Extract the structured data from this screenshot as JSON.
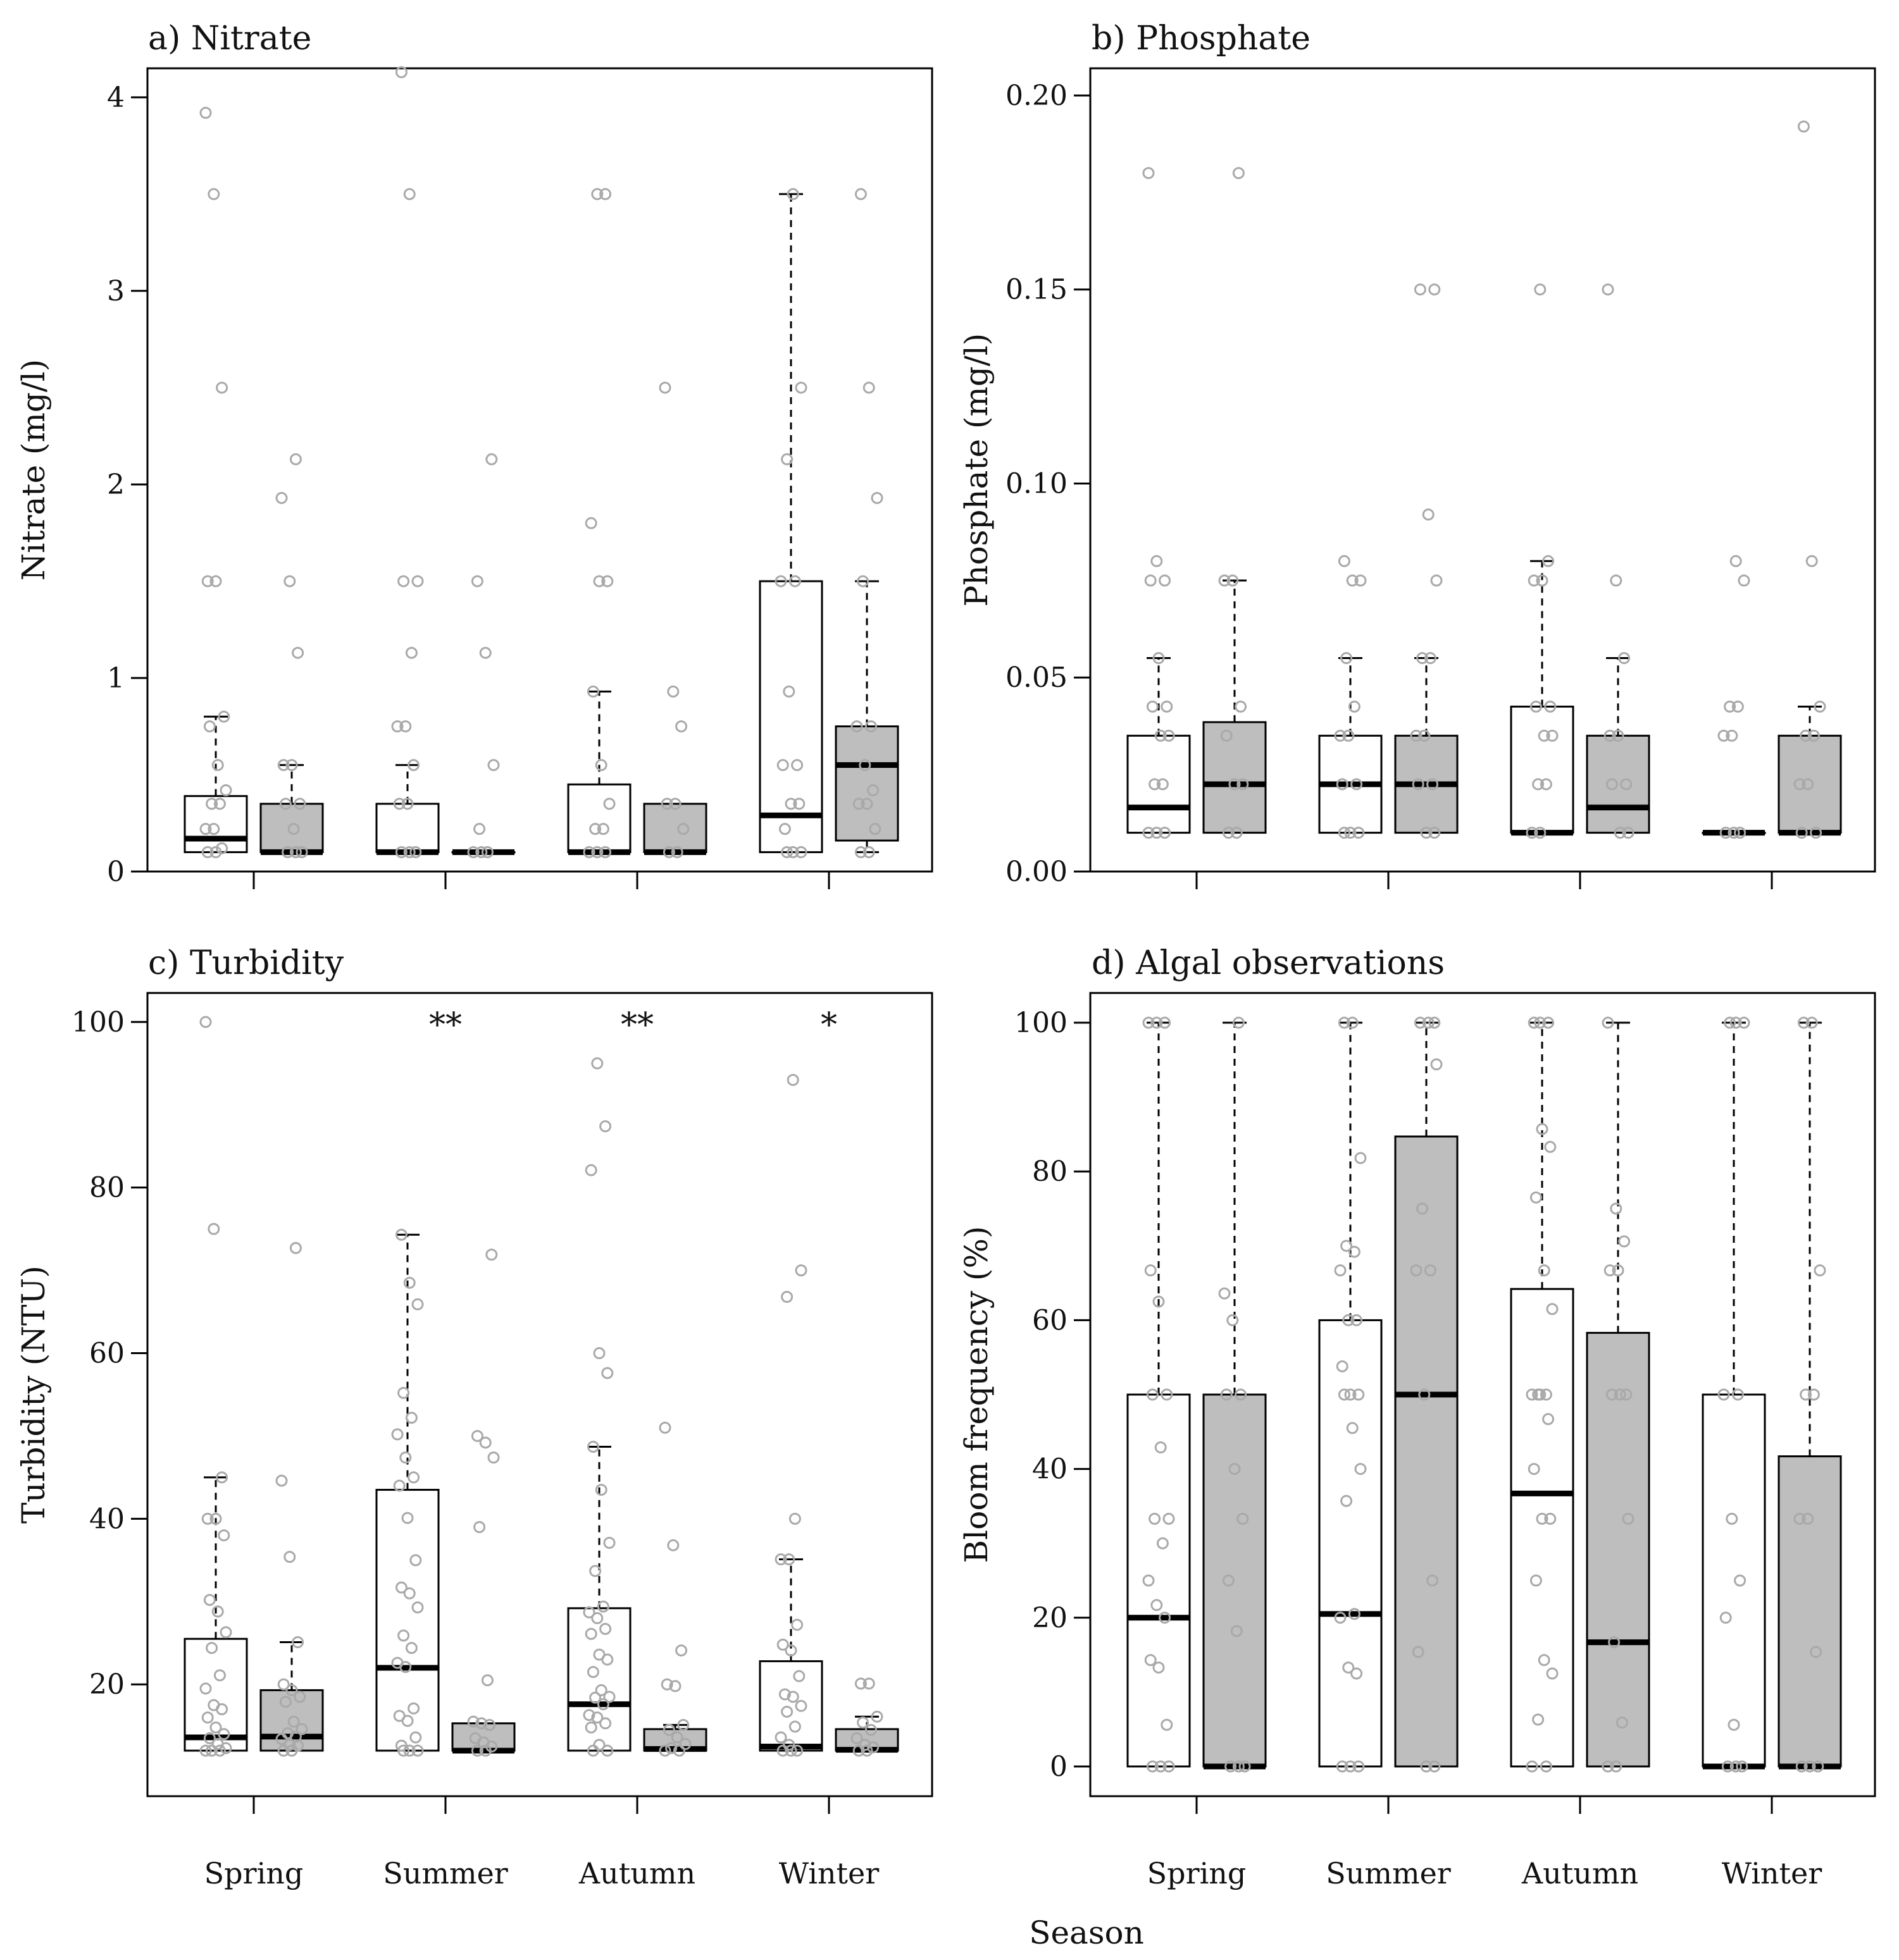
{
  "figure": {
    "xlabel": "Season",
    "seasons": [
      "Spring",
      "Summer",
      "Autumn",
      "Winter"
    ],
    "colors": {
      "group_a_fill": "#ffffff",
      "group_b_fill": "#bebebe",
      "points": "#a9a9a9",
      "median": "#000000",
      "frame": "#000000"
    }
  },
  "chart_data": [
    {
      "id": "nitrate",
      "type": "box",
      "title": "a) Nitrate",
      "ylabel": "Nitrate (mg/l)",
      "ylim": [
        0,
        4.15
      ],
      "yticks": [
        0,
        1,
        2,
        3,
        4
      ],
      "ytick_labels": [
        "0",
        "1",
        "2",
        "3",
        "4"
      ],
      "categories": [
        "Spring",
        "Summer",
        "Autumn",
        "Winter"
      ],
      "series": [
        {
          "fill": "white",
          "boxes": [
            {
              "whislo": 0.1,
              "q1": 0.1,
              "med": 0.17,
              "q3": 0.39,
              "whishi": 0.8,
              "points": [
                3.92,
                3.5,
                2.5,
                1.5,
                1.5,
                0.8,
                0.75,
                0.55,
                0.42,
                0.35,
                0.35,
                0.22,
                0.22,
                0.12,
                0.1,
                0.1
              ]
            },
            {
              "whislo": 0.1,
              "q1": 0.1,
              "med": 0.1,
              "q3": 0.35,
              "whishi": 0.55,
              "points": [
                4.13,
                3.5,
                1.5,
                1.5,
                1.13,
                0.75,
                0.75,
                0.55,
                0.35,
                0.35,
                0.1,
                0.1,
                0.1
              ]
            },
            {
              "whislo": 0.1,
              "q1": 0.1,
              "med": 0.1,
              "q3": 0.45,
              "whishi": 0.93,
              "points": [
                3.5,
                3.5,
                1.8,
                1.5,
                1.5,
                0.93,
                0.55,
                0.35,
                0.22,
                0.22,
                0.1,
                0.1,
                0.1
              ]
            },
            {
              "whislo": 0.1,
              "q1": 0.1,
              "med": 0.29,
              "q3": 1.5,
              "whishi": 3.5,
              "points": [
                3.5,
                2.5,
                2.13,
                1.5,
                1.5,
                0.93,
                0.55,
                0.55,
                0.35,
                0.35,
                0.22,
                0.1,
                0.1,
                0.1
              ]
            }
          ]
        },
        {
          "fill": "grey",
          "boxes": [
            {
              "whislo": 0.1,
              "q1": 0.1,
              "med": 0.1,
              "q3": 0.35,
              "whishi": 0.55,
              "points": [
                2.13,
                1.93,
                1.5,
                1.13,
                0.55,
                0.55,
                0.35,
                0.35,
                0.22,
                0.1,
                0.1,
                0.1
              ]
            },
            {
              "whislo": 0.1,
              "q1": 0.1,
              "med": 0.1,
              "q3": 0.1,
              "whishi": 0.1,
              "points": [
                2.13,
                1.5,
                1.13,
                0.55,
                0.22,
                0.1,
                0.1,
                0.1
              ]
            },
            {
              "whislo": 0.1,
              "q1": 0.1,
              "med": 0.1,
              "q3": 0.35,
              "whishi": 0.35,
              "points": [
                2.5,
                0.93,
                0.75,
                0.35,
                0.35,
                0.22,
                0.1,
                0.1
              ]
            },
            {
              "whislo": 0.1,
              "q1": 0.16,
              "med": 0.55,
              "q3": 0.75,
              "whishi": 1.5,
              "points": [
                3.5,
                2.5,
                1.93,
                1.5,
                0.75,
                0.75,
                0.55,
                0.42,
                0.35,
                0.35,
                0.22,
                0.1,
                0.1
              ]
            }
          ]
        }
      ]
    },
    {
      "id": "phosphate",
      "type": "box",
      "title": "b) Phosphate",
      "ylabel": "Phosphate (mg/l)",
      "ylim": [
        0,
        0.207
      ],
      "yticks": [
        0,
        0.05,
        0.1,
        0.15,
        0.2
      ],
      "ytick_labels": [
        "0.00",
        "0.05",
        "0.10",
        "0.15",
        "0.20"
      ],
      "categories": [
        "Spring",
        "Summer",
        "Autumn",
        "Winter"
      ],
      "series": [
        {
          "fill": "white",
          "boxes": [
            {
              "whislo": 0.01,
              "q1": 0.01,
              "med": 0.0165,
              "q3": 0.035,
              "whishi": 0.055,
              "points": [
                0.18,
                0.08,
                0.075,
                0.075,
                0.055,
                0.0425,
                0.0425,
                0.035,
                0.035,
                0.0225,
                0.0225,
                0.01,
                0.01,
                0.01
              ]
            },
            {
              "whislo": 0.01,
              "q1": 0.01,
              "med": 0.0225,
              "q3": 0.035,
              "whishi": 0.055,
              "points": [
                0.08,
                0.075,
                0.075,
                0.055,
                0.0425,
                0.035,
                0.035,
                0.0225,
                0.0225,
                0.01,
                0.01,
                0.01
              ]
            },
            {
              "whislo": 0.01,
              "q1": 0.01,
              "med": 0.01,
              "q3": 0.0425,
              "whishi": 0.08,
              "points": [
                0.15,
                0.08,
                0.075,
                0.075,
                0.0425,
                0.0425,
                0.035,
                0.035,
                0.0225,
                0.0225,
                0.01,
                0.01
              ]
            },
            {
              "whislo": 0.01,
              "q1": 0.01,
              "med": 0.01,
              "q3": 0.01,
              "whishi": 0.01,
              "points": [
                0.08,
                0.075,
                0.0425,
                0.0425,
                0.035,
                0.035,
                0.01,
                0.01,
                0.01
              ]
            }
          ]
        },
        {
          "fill": "grey",
          "boxes": [
            {
              "whislo": 0.01,
              "q1": 0.01,
              "med": 0.0225,
              "q3": 0.0385,
              "whishi": 0.075,
              "points": [
                0.18,
                0.075,
                0.075,
                0.0425,
                0.035,
                0.0225,
                0.0225,
                0.01,
                0.01
              ]
            },
            {
              "whislo": 0.01,
              "q1": 0.01,
              "med": 0.0225,
              "q3": 0.035,
              "whishi": 0.055,
              "points": [
                0.15,
                0.15,
                0.092,
                0.075,
                0.055,
                0.055,
                0.035,
                0.035,
                0.0225,
                0.0225,
                0.01,
                0.01
              ]
            },
            {
              "whislo": 0.01,
              "q1": 0.01,
              "med": 0.0165,
              "q3": 0.035,
              "whishi": 0.055,
              "points": [
                0.15,
                0.075,
                0.055,
                0.035,
                0.035,
                0.0225,
                0.0225,
                0.01,
                0.01
              ]
            },
            {
              "whislo": 0.01,
              "q1": 0.01,
              "med": 0.01,
              "q3": 0.035,
              "whishi": 0.0425,
              "points": [
                0.192,
                0.08,
                0.0425,
                0.035,
                0.035,
                0.0225,
                0.0225,
                0.01,
                0.01
              ]
            }
          ]
        }
      ]
    },
    {
      "id": "turbidity",
      "type": "box",
      "title": "c) Turbidity",
      "ylabel": "Turbidity (NTU)",
      "ylim": [
        6.5,
        103.5
      ],
      "yticks": [
        20,
        40,
        60,
        80,
        100
      ],
      "ytick_labels": [
        "20",
        "40",
        "60",
        "80",
        "100"
      ],
      "categories": [
        "Spring",
        "Summer",
        "Autumn",
        "Winter"
      ],
      "annotations": [
        "",
        "**",
        "**",
        "*"
      ],
      "series": [
        {
          "fill": "white",
          "boxes": [
            {
              "whislo": 12,
              "q1": 12,
              "med": 13.6,
              "q3": 25.5,
              "whishi": 45,
              "points": [
                100,
                75,
                45,
                40,
                40,
                38,
                30.2,
                28.8,
                26.3,
                24.4,
                21.1,
                19.5,
                17.5,
                17,
                16,
                14.8,
                14,
                13.5,
                12.8,
                12.3,
                12,
                12,
                12
              ]
            },
            {
              "whislo": 12,
              "q1": 12,
              "med": 22,
              "q3": 43.5,
              "whishi": 74.3,
              "points": [
                74.3,
                68.5,
                65.9,
                55.2,
                52.2,
                50.2,
                47.4,
                45,
                44,
                40.1,
                35,
                31.7,
                31,
                29.3,
                25.9,
                24.4,
                22.6,
                22.1,
                17.1,
                16.2,
                15.6,
                13.6,
                12.6,
                12,
                12,
                12
              ]
            },
            {
              "whislo": 12,
              "q1": 12,
              "med": 17.6,
              "q3": 29.2,
              "whishi": 48.7,
              "points": [
                95,
                87.4,
                82.1,
                60,
                57.6,
                48.7,
                43.5,
                37.1,
                33.7,
                29.4,
                28.7,
                28,
                26.7,
                26.1,
                23.6,
                23,
                21.5,
                19.3,
                18.5,
                18.4,
                17.6,
                16.3,
                16,
                15.3,
                14.8,
                12.7,
                12,
                12
              ]
            },
            {
              "whislo": 12,
              "q1": 12,
              "med": 12.5,
              "q3": 22.8,
              "whishi": 35.1,
              "points": [
                93,
                70,
                66.8,
                40,
                35.1,
                35.1,
                27.2,
                24.8,
                24.1,
                21,
                18.8,
                18.5,
                17.4,
                16.7,
                14.9,
                13.6,
                12.7,
                12,
                12,
                12
              ]
            }
          ]
        },
        {
          "fill": "grey",
          "boxes": [
            {
              "whislo": 12,
              "q1": 12,
              "med": 13.7,
              "q3": 19.3,
              "whishi": 25.1,
              "points": [
                72.7,
                44.6,
                35.4,
                25.1,
                20,
                19.3,
                18.5,
                17.9,
                15.5,
                14.6,
                14.1,
                13.7,
                13.4,
                12.7,
                12.6,
                12,
                12
              ]
            },
            {
              "whislo": 12,
              "q1": 12,
              "med": 12,
              "q3": 15.3,
              "whishi": 15.3,
              "points": [
                71.9,
                50,
                49.2,
                47.4,
                39,
                20.5,
                15.5,
                15.3,
                15.1,
                13.5,
                13,
                12.5,
                12,
                12
              ]
            },
            {
              "whislo": 12,
              "q1": 12,
              "med": 12.2,
              "q3": 14.6,
              "whishi": 15.1,
              "points": [
                51,
                36.8,
                24.1,
                20,
                19.8,
                15.1,
                14.5,
                13.6,
                12.8,
                12.3,
                12,
                12
              ]
            },
            {
              "whislo": 12,
              "q1": 12,
              "med": 12.1,
              "q3": 14.6,
              "whishi": 16.1,
              "points": [
                20.1,
                20.1,
                16.1,
                15.4,
                14.5,
                13.5,
                12.7,
                12.4,
                12,
                12
              ]
            }
          ]
        }
      ]
    },
    {
      "id": "algal",
      "type": "box",
      "title": "d) Algal observations",
      "ylabel": "Bloom frequency (%)",
      "ylim": [
        -4,
        104
      ],
      "yticks": [
        0,
        20,
        40,
        60,
        80,
        100
      ],
      "ytick_labels": [
        "0",
        "20",
        "40",
        "60",
        "80",
        "100"
      ],
      "categories": [
        "Spring",
        "Summer",
        "Autumn",
        "Winter"
      ],
      "series": [
        {
          "fill": "white",
          "boxes": [
            {
              "whislo": 0,
              "q1": 0,
              "med": 20,
              "q3": 50,
              "whishi": 100,
              "points": [
                100,
                100,
                100,
                66.7,
                62.5,
                50,
                50,
                42.9,
                33.3,
                33.3,
                30,
                25,
                21.7,
                20,
                14.3,
                13.3,
                5.6,
                0,
                0,
                0
              ]
            },
            {
              "whislo": 0,
              "q1": 0,
              "med": 20.5,
              "q3": 60,
              "whishi": 100,
              "points": [
                100,
                100,
                81.8,
                70,
                69.2,
                66.7,
                60,
                60,
                53.8,
                50,
                50,
                50,
                45.5,
                40,
                35.7,
                20.5,
                20,
                13.3,
                12.5,
                0,
                0,
                0
              ]
            },
            {
              "whislo": 0,
              "q1": 0,
              "med": 36.7,
              "q3": 64.2,
              "whishi": 100,
              "points": [
                100,
                100,
                100,
                85.7,
                83.3,
                76.5,
                66.7,
                61.5,
                50,
                50,
                50,
                50,
                46.7,
                40,
                33.3,
                33.3,
                25,
                14.3,
                12.5,
                6.3,
                0,
                0
              ]
            },
            {
              "whislo": 0,
              "q1": 0,
              "med": 0,
              "q3": 50,
              "whishi": 100,
              "points": [
                100,
                100,
                100,
                50,
                50,
                33.3,
                25,
                20,
                5.6,
                0,
                0,
                0
              ]
            }
          ]
        },
        {
          "fill": "grey",
          "boxes": [
            {
              "whislo": 0,
              "q1": 0,
              "med": 0,
              "q3": 50,
              "whishi": 100,
              "points": [
                100,
                63.6,
                60,
                50,
                50,
                40,
                33.3,
                25,
                18.2,
                0,
                0,
                0
              ]
            },
            {
              "whislo": 0,
              "q1": 0,
              "med": 50,
              "q3": 84.7,
              "whishi": 100,
              "points": [
                100,
                100,
                100,
                94.4,
                75,
                66.7,
                66.7,
                50,
                25,
                15.4,
                0,
                0
              ]
            },
            {
              "whislo": 0,
              "q1": 0,
              "med": 16.7,
              "q3": 58.3,
              "whishi": 100,
              "points": [
                100,
                75,
                70.6,
                66.7,
                66.7,
                50,
                50,
                50,
                33.3,
                16.7,
                5.9,
                0,
                0
              ]
            },
            {
              "whislo": 0,
              "q1": 0,
              "med": 0,
              "q3": 41.7,
              "whishi": 100,
              "points": [
                100,
                100,
                66.7,
                50,
                50,
                33.3,
                33.3,
                15.4,
                0,
                0,
                0
              ]
            }
          ]
        }
      ]
    }
  ]
}
